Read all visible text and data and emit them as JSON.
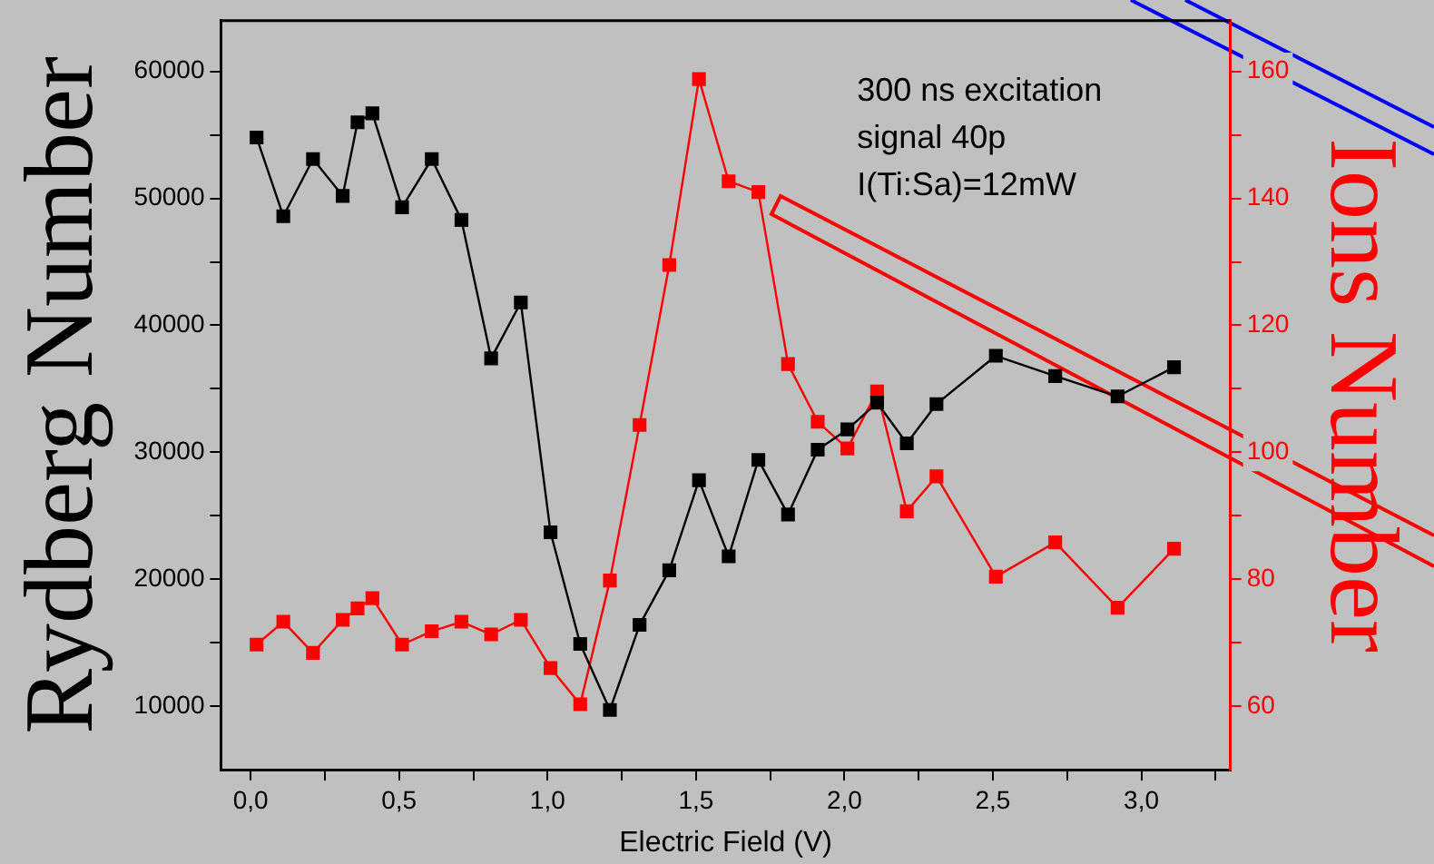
{
  "chart_data": {
    "type": "line",
    "xlabel": "Electric Field (V)",
    "ylabel": "Rydberg Number",
    "y2label": "Ions Number",
    "annotations": [
      "300 ns excitation",
      "signal 40p",
      "I(Ti:Sa)=12mW"
    ],
    "x": [
      0.02,
      0.11,
      0.21,
      0.31,
      0.36,
      0.41,
      0.51,
      0.61,
      0.71,
      0.81,
      0.91,
      1.01,
      1.11,
      1.21,
      1.31,
      1.41,
      1.51,
      1.61,
      1.71,
      1.81,
      1.91,
      2.01,
      2.11,
      2.21,
      2.31,
      2.51,
      2.71,
      2.92,
      3.11
    ],
    "series": [
      {
        "color": "#000000",
        "values": [
          54800,
          48600,
          53100,
          50200,
          56000,
          56700,
          49300,
          53100,
          48300,
          37400,
          41800,
          23700,
          14900,
          9700,
          16400,
          20700,
          27800,
          21800,
          29400,
          25100,
          30200,
          31800,
          33900,
          30700,
          33800,
          37600,
          36000,
          34400,
          36700
        ]
      },
      {
        "color": "#ff0000",
        "axis": "y2",
        "values": [
          69.7,
          73.3,
          68.4,
          73.6,
          75.4,
          77.0,
          69.7,
          71.8,
          73.3,
          71.3,
          73.6,
          66.0,
          60.3,
          79.8,
          104.3,
          129.5,
          158.8,
          142.7,
          141.0,
          113.9,
          104.8,
          100.6,
          109.6,
          90.7,
          96.2,
          80.4,
          85.8,
          75.5,
          84.8
        ]
      }
    ],
    "xlim": [
      -0.1,
      3.3
    ],
    "xticks": [
      {
        "value": 0,
        "label": "0,0"
      },
      {
        "value": 0.25,
        "label": null
      },
      {
        "value": 0.5,
        "label": "0,5"
      },
      {
        "value": 0.75,
        "label": null
      },
      {
        "value": 1,
        "label": "1,0"
      },
      {
        "value": 1.25,
        "label": null
      },
      {
        "value": 1.5,
        "label": "1,5"
      },
      {
        "value": 1.75,
        "label": null
      },
      {
        "value": 2,
        "label": "2,0"
      },
      {
        "value": 2.25,
        "label": null
      },
      {
        "value": 2.5,
        "label": "2,5"
      },
      {
        "value": 2.75,
        "label": null
      },
      {
        "value": 3,
        "label": "3,0"
      },
      {
        "value": 3.25,
        "label": null
      }
    ],
    "ylim": [
      5000,
      64000
    ],
    "yticks": [
      10000,
      {
        "value": 15000,
        "label": null
      },
      20000,
      {
        "value": 25000,
        "label": null
      },
      30000,
      {
        "value": 35000,
        "label": null
      },
      40000,
      {
        "value": 45000,
        "label": null
      },
      50000,
      {
        "value": 55000,
        "label": null
      },
      60000
    ],
    "y2lim": [
      50,
      168
    ],
    "y2ticks": [
      60,
      {
        "value": 70,
        "label": null
      },
      80,
      {
        "value": 90,
        "label": null
      },
      100,
      {
        "value": 110,
        "label": null
      },
      120,
      {
        "value": 130,
        "label": null
      },
      140,
      {
        "value": 150,
        "label": null
      },
      160
    ],
    "grid": false,
    "legend": false,
    "marker": "square",
    "line_style": "solid"
  }
}
